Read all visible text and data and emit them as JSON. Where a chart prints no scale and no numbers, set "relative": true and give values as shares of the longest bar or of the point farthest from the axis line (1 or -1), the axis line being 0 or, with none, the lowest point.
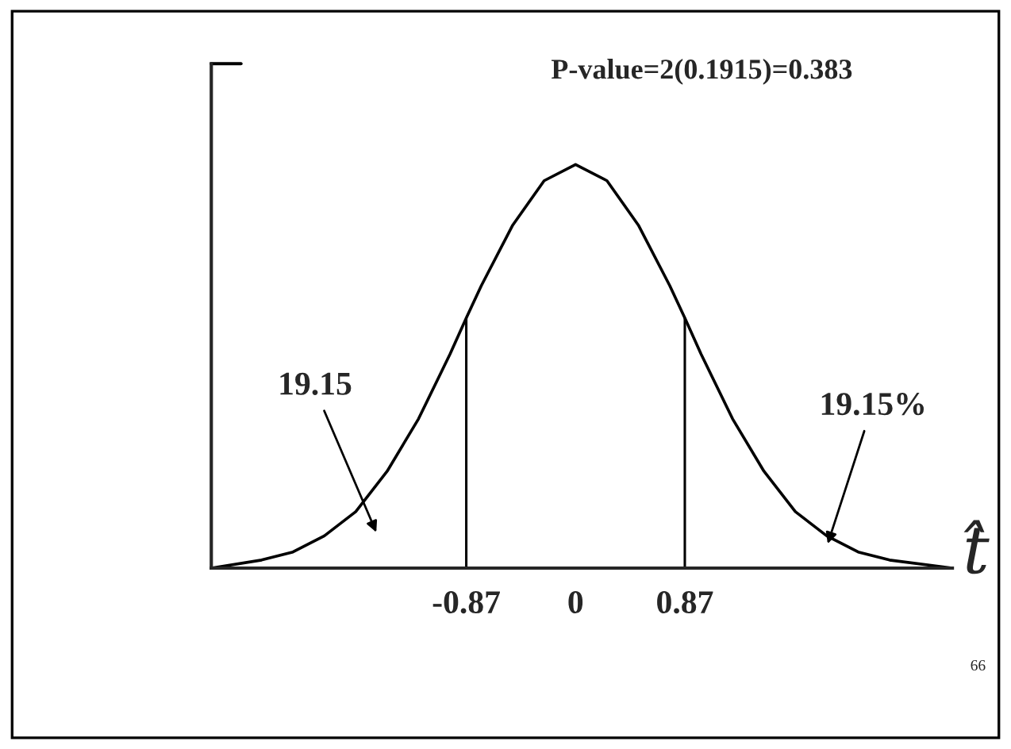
{
  "chart_data": {
    "type": "line",
    "relative": true,
    "xlabel": "t̂",
    "x": [
      -2.9,
      -2.5,
      -2.25,
      -2,
      -1.75,
      -1.5,
      -1.25,
      -1,
      -0.87,
      -0.75,
      -0.5,
      -0.25,
      0,
      0.25,
      0.5,
      0.75,
      0.87,
      1,
      1.25,
      1.5,
      1.75,
      2,
      2.25,
      2.5,
      3
    ],
    "series": [
      {
        "color": "#000000",
        "values": [
          0,
          0.02,
          0.04,
          0.08,
          0.14,
          0.24,
          0.37,
          0.53,
          0.62,
          0.7,
          0.85,
          0.96,
          1,
          0.96,
          0.85,
          0.7,
          0.62,
          0.53,
          0.37,
          0.24,
          0.14,
          0.08,
          0.04,
          0.02,
          0
        ]
      }
    ],
    "xlim": [
      -2.9,
      3.0
    ],
    "xticks": [
      -0.87,
      0,
      0.87
    ],
    "tick_labels": "x",
    "grid": false,
    "legend": false,
    "marker": "none",
    "line_style": "solid",
    "ref_lines": [
      {
        "axis": "x",
        "value": -0.87
      },
      {
        "axis": "x",
        "value": 0.87
      }
    ],
    "annotations": [
      "P-value=2(0.1915)=0.383",
      "19.15",
      "19.15%",
      "66"
    ]
  }
}
